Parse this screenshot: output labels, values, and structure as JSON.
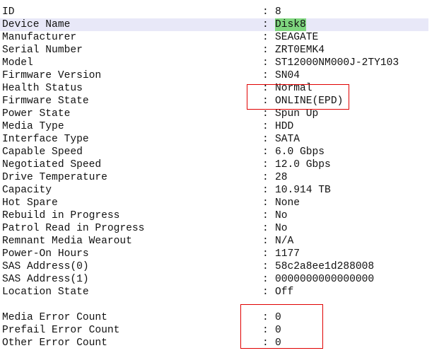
{
  "separator": ":",
  "rows": [
    {
      "label": "ID",
      "value": "8"
    },
    {
      "label": "Device Name",
      "value": "Disk8",
      "selected": true
    },
    {
      "label": "Manufacturer",
      "value": "SEAGATE"
    },
    {
      "label": "Serial Number",
      "value": "ZRT0EMK4"
    },
    {
      "label": "Model",
      "value": "ST12000NM000J-2TY103"
    },
    {
      "label": "Firmware Version",
      "value": "SN04"
    },
    {
      "label": "Health Status",
      "value": "Normal"
    },
    {
      "label": "Firmware State",
      "value": "ONLINE(EPD)"
    },
    {
      "label": "Power State",
      "value": "Spun Up"
    },
    {
      "label": "Media Type",
      "value": "HDD"
    },
    {
      "label": "Interface Type",
      "value": "SATA"
    },
    {
      "label": "Capable Speed",
      "value": "6.0 Gbps"
    },
    {
      "label": "Negotiated Speed",
      "value": "12.0 Gbps"
    },
    {
      "label": "Drive Temperature",
      "value": "28"
    },
    {
      "label": "Capacity",
      "value": "10.914 TB"
    },
    {
      "label": "Hot Spare",
      "value": "None"
    },
    {
      "label": "Rebuild in Progress",
      "value": "No"
    },
    {
      "label": "Patrol Read in Progress",
      "value": "No"
    },
    {
      "label": "Remnant Media Wearout",
      "value": "N/A"
    },
    {
      "label": "Power-On Hours",
      "value": "1177"
    },
    {
      "label": "SAS Address(0)",
      "value": "58c2a8ee1d288008"
    },
    {
      "label": "SAS Address(1)",
      "value": "0000000000000000"
    },
    {
      "label": "Location State",
      "value": "Off"
    },
    {
      "label": "Media Error Count",
      "value": "0"
    },
    {
      "label": "Prefail Error Count",
      "value": "0"
    },
    {
      "label": "Other Error Count",
      "value": "0"
    }
  ],
  "colors": {
    "selected_row": "#e8e8f8",
    "value_highlight": "#7fd67f",
    "annotation_box": "#e00000"
  }
}
